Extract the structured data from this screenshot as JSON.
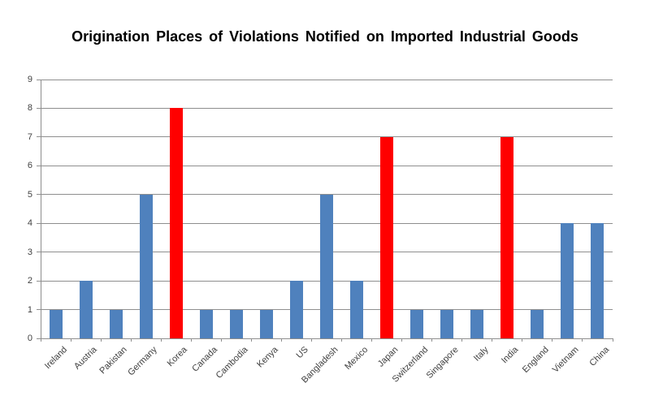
{
  "chart_data": {
    "type": "bar",
    "title": "Origination Places of Violations Notified on Imported Industrial Goods",
    "categories": [
      "Ireland",
      "Austria",
      "Pakistan",
      "Germany",
      "Korea",
      "Canada",
      "Cambodia",
      "Kenya",
      "US",
      "Bangladesh",
      "Mexico",
      "Japan",
      "Switzerland",
      "Singapore",
      "Italy",
      "India",
      "England",
      "Vietnam",
      "China"
    ],
    "values": [
      1,
      2,
      1,
      5,
      8,
      1,
      1,
      1,
      2,
      5,
      2,
      7,
      1,
      1,
      1,
      7,
      1,
      4,
      4
    ],
    "bar_colors": [
      "#4F81BD",
      "#4F81BD",
      "#4F81BD",
      "#4F81BD",
      "#FF0000",
      "#4F81BD",
      "#4F81BD",
      "#4F81BD",
      "#4F81BD",
      "#4F81BD",
      "#4F81BD",
      "#FF0000",
      "#4F81BD",
      "#4F81BD",
      "#4F81BD",
      "#FF0000",
      "#4F81BD",
      "#4F81BD",
      "#4F81BD"
    ],
    "default_bar_color": "#4F81BD",
    "highlight_color": "#FF0000",
    "highlighted_categories": [
      "Korea",
      "Japan",
      "India"
    ],
    "xlabel": "",
    "ylabel": "",
    "ylim": [
      0,
      9
    ],
    "yticks": [
      "0",
      "1",
      "2",
      "3",
      "4",
      "5",
      "6",
      "7",
      "8",
      "9"
    ],
    "grid": "horizontal",
    "legend": "none",
    "gridline_color": "#8E8E8E",
    "axis_color": "#8E8E8E",
    "tick_label_color": "#404040",
    "title_color": "#000000",
    "background_color": "#FFFFFF"
  }
}
